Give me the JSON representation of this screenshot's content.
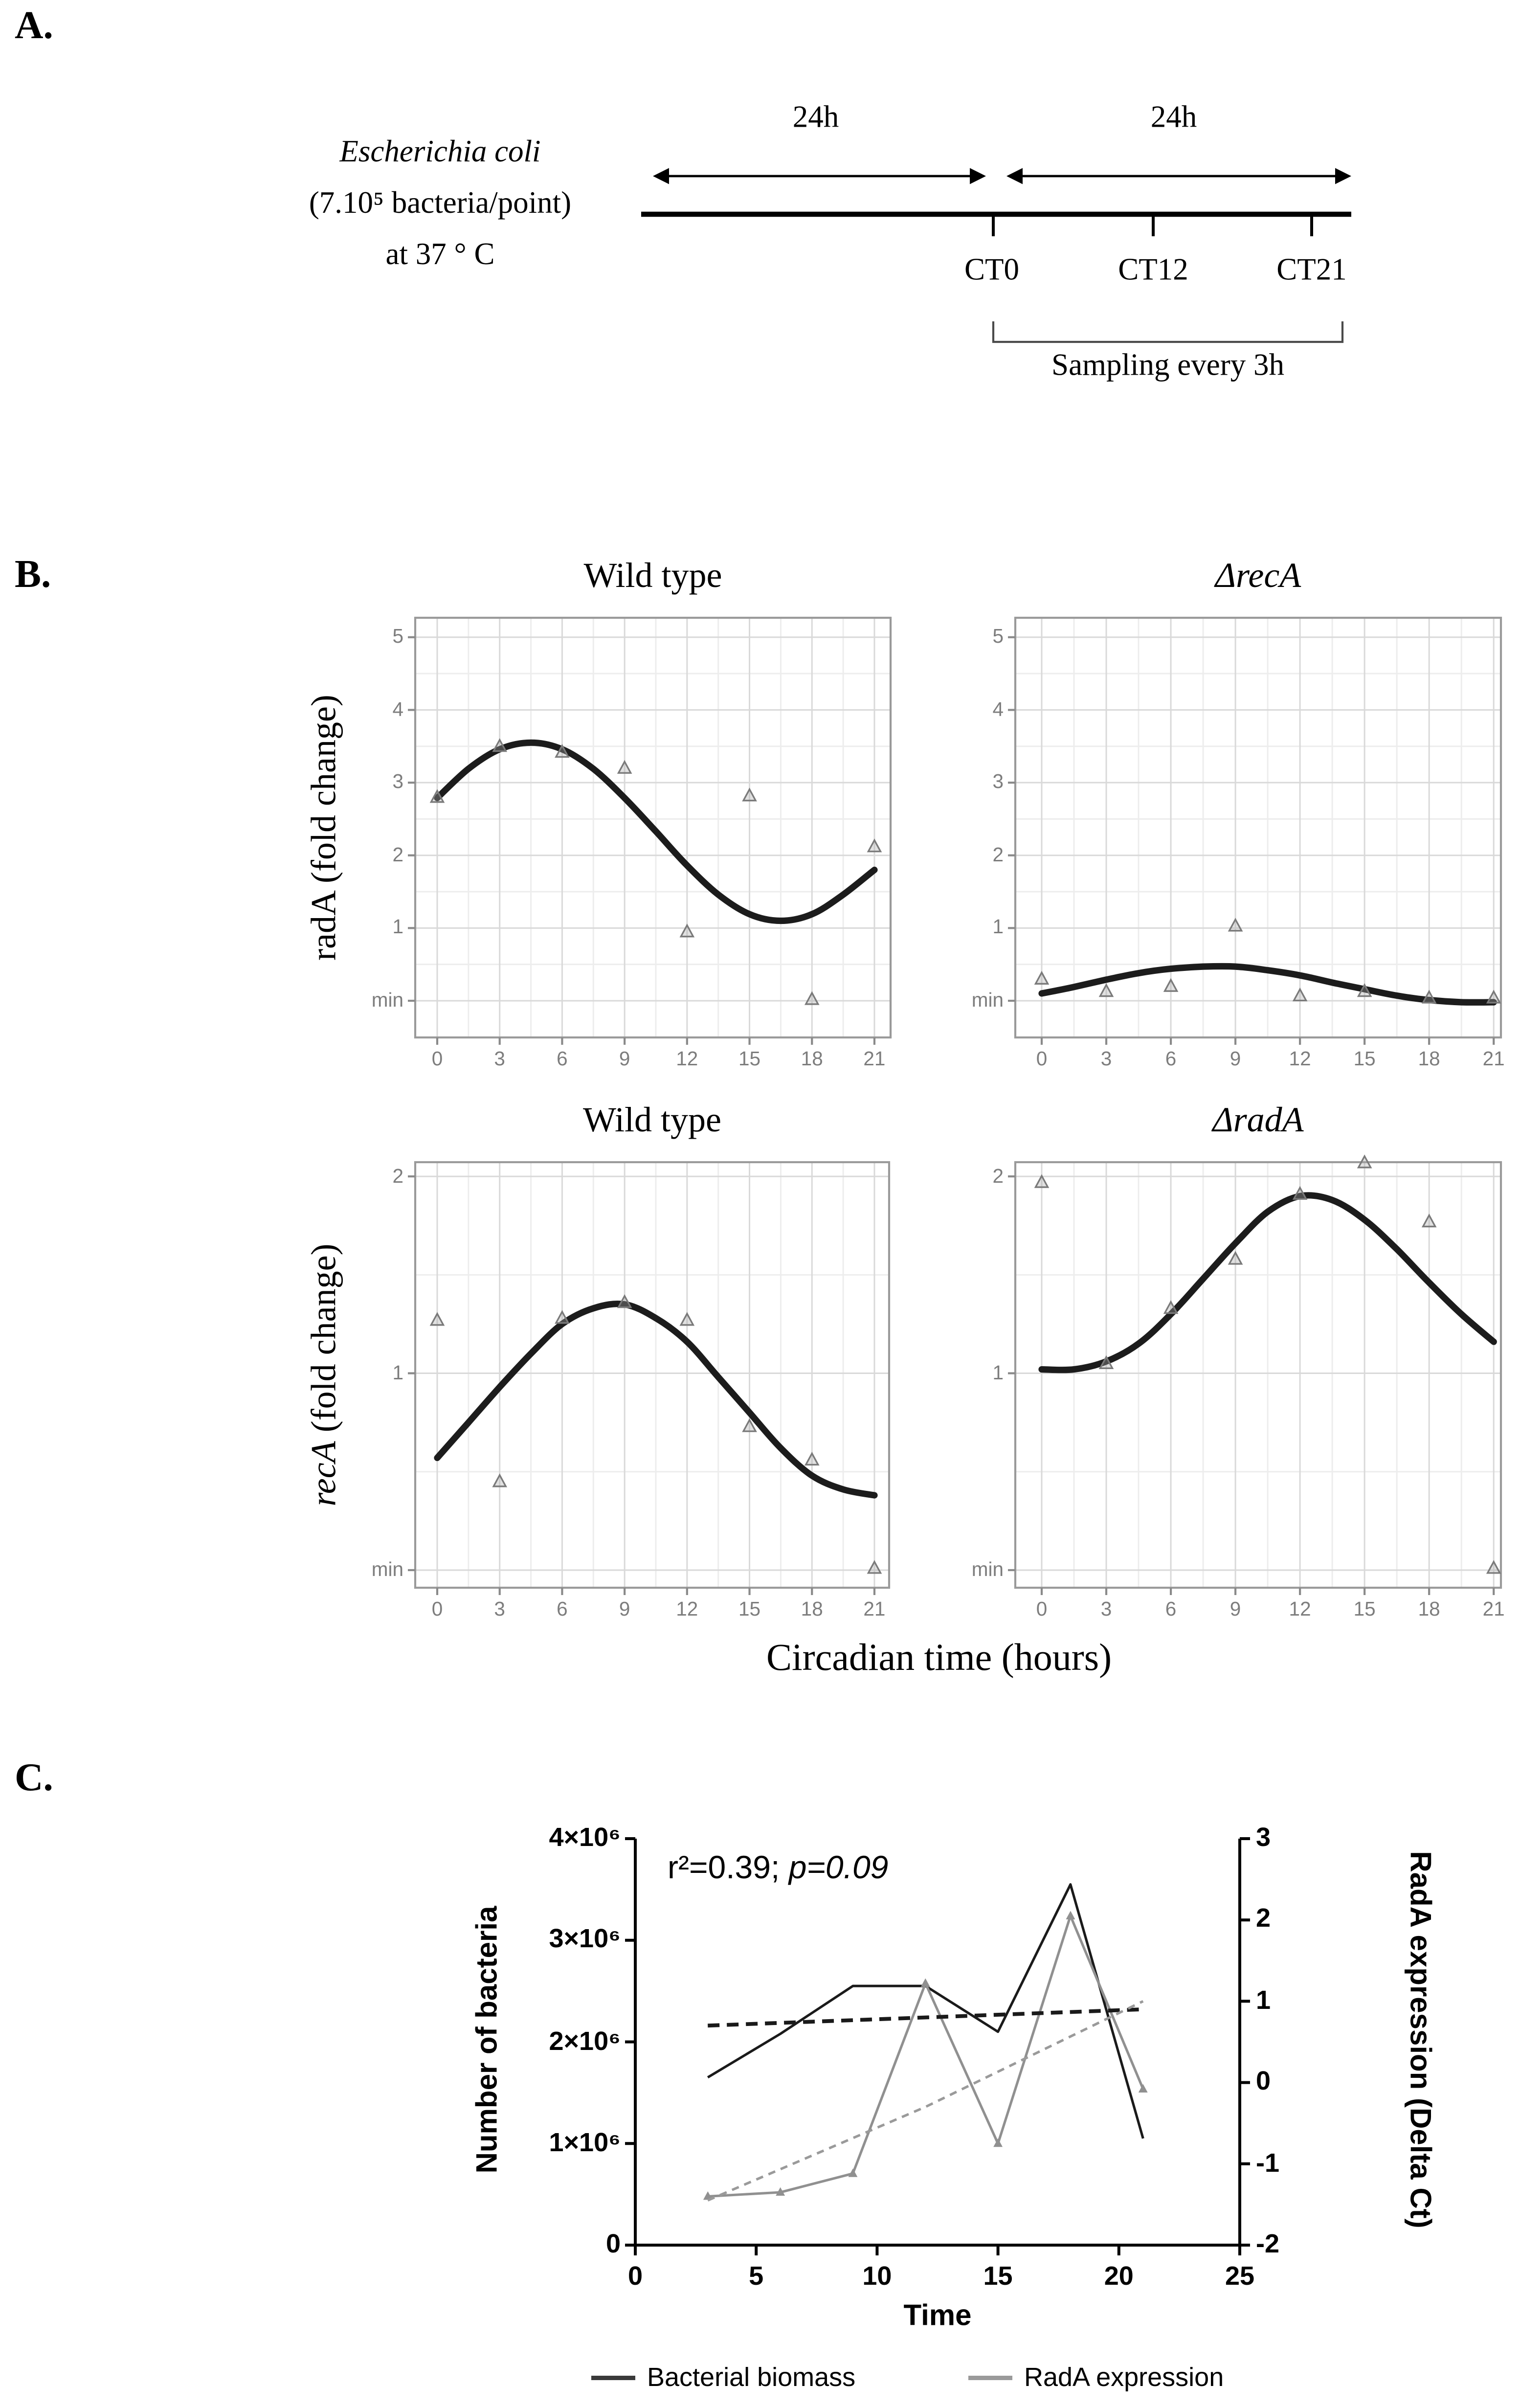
{
  "figure": {
    "panel_a": {
      "label": "A.",
      "organism": "Escherichia coli",
      "inoculum": "(7.10⁵ bacteria/point)",
      "temperature": "at 37 ° C",
      "interval_labels": [
        "24h",
        "24h"
      ],
      "ct_labels": [
        "CT0",
        "CT12",
        "CT21"
      ],
      "sampling_note": "Sampling every 3h"
    },
    "panel_b": {
      "label": "B.",
      "xlabel": "Circadian time (hours)",
      "ylabel_top_gene": "radA",
      "ylabel_top_rest": " (fold change)",
      "ylabel_bottom_gene": "recA",
      "ylabel_bottom_rest": " (fold change)"
    },
    "panel_c": {
      "label": "C.",
      "annotation_r2": "r²=0.39;",
      "annotation_p": "p=0.09",
      "legend": [
        {
          "label": "Bacterial biomass",
          "color": "#3a3a3a"
        },
        {
          "label": "RadA expression",
          "color": "#9a9a9a"
        }
      ]
    },
    "colors": {
      "curve": "#1c1c1c",
      "point_stroke": "#7a7a7a",
      "point_fill": "#c9c9c9",
      "grid_major": "#d9d9d9",
      "grid_minor": "#ededed",
      "plot_border": "#9a9a9a",
      "tick": "#8a8a8a",
      "axis_black": "#000000"
    }
  },
  "chart_data": [
    {
      "id": "b_wildtype_radA",
      "type": "scatter",
      "title": "Wild type",
      "title_italic": false,
      "ylabel": "radA (fold change)",
      "x": [
        0,
        3,
        6,
        9,
        12,
        15,
        18,
        21
      ],
      "points": [
        2.8,
        3.5,
        3.42,
        3.2,
        0.95,
        2.82,
        0.02,
        2.12
      ],
      "fit_x": [
        0,
        1.5,
        3,
        4.5,
        6,
        7.5,
        9,
        10.5,
        12,
        13.5,
        15,
        16.5,
        18,
        19.5,
        21
      ],
      "fit_y": [
        2.79,
        3.19,
        3.46,
        3.55,
        3.46,
        3.19,
        2.79,
        2.33,
        1.86,
        1.46,
        1.19,
        1.1,
        1.19,
        1.46,
        1.8
      ],
      "ylim": [
        -0.5,
        5.27
      ],
      "y_ticks": [
        0,
        1,
        2,
        3,
        4,
        5
      ],
      "y_tick_labels": [
        "min",
        "1",
        "2",
        "3",
        "4",
        "5"
      ],
      "grid": true
    },
    {
      "id": "b_delta_recA_radA",
      "type": "scatter",
      "title": "ΔrecA",
      "title_italic": true,
      "ylabel": "radA (fold change)",
      "x": [
        0,
        3,
        6,
        9,
        12,
        15,
        18,
        21
      ],
      "points": [
        0.3,
        0.13,
        0.2,
        1.03,
        0.07,
        0.13,
        0.04,
        0.04
      ],
      "fit_x": [
        0,
        1.5,
        3,
        4.5,
        6,
        7.5,
        9,
        10.5,
        12,
        13.5,
        15,
        16.5,
        18,
        19.5,
        21
      ],
      "fit_y": [
        0.1,
        0.19,
        0.29,
        0.38,
        0.44,
        0.47,
        0.47,
        0.42,
        0.35,
        0.25,
        0.16,
        0.07,
        0.01,
        -0.02,
        -0.02
      ],
      "ylim": [
        -0.5,
        5.27
      ],
      "y_ticks": [
        0,
        1,
        2,
        3,
        4,
        5
      ],
      "y_tick_labels": [
        "min",
        "1",
        "2",
        "3",
        "4",
        "5"
      ],
      "grid": true
    },
    {
      "id": "b_wildtype_recA",
      "type": "scatter",
      "title": "Wild type",
      "title_italic": false,
      "ylabel": "recA (fold change)",
      "x": [
        0,
        3,
        6,
        9,
        12,
        15,
        18,
        21
      ],
      "points": [
        1.27,
        0.45,
        1.28,
        1.36,
        1.27,
        0.73,
        0.56,
        0.01
      ],
      "fit_x": [
        0,
        1.5,
        3,
        4.5,
        6,
        7.5,
        9,
        10.5,
        12,
        13.5,
        15,
        16.5,
        18,
        19.5,
        21
      ],
      "fit_y": [
        0.57,
        0.75,
        0.93,
        1.1,
        1.25,
        1.33,
        1.35,
        1.28,
        1.16,
        0.98,
        0.8,
        0.62,
        0.48,
        0.41,
        0.38
      ],
      "ylim": [
        -0.09,
        2.07
      ],
      "y_ticks": [
        0,
        1,
        2
      ],
      "y_tick_labels": [
        "min",
        "1",
        "2"
      ],
      "grid": true
    },
    {
      "id": "b_delta_radA_recA",
      "type": "scatter",
      "title": "ΔradA",
      "title_italic": true,
      "ylabel": "recA (fold change)",
      "x": [
        0,
        3,
        6,
        9,
        12,
        15,
        18,
        21
      ],
      "points": [
        1.97,
        1.05,
        1.33,
        1.58,
        1.91,
        2.07,
        1.77,
        0.01
      ],
      "fit_x": [
        0,
        1.5,
        3,
        4.5,
        6,
        7.5,
        9,
        10.5,
        12,
        13.5,
        15,
        16.5,
        18,
        19.5,
        21
      ],
      "fit_y": [
        1.02,
        1.02,
        1.06,
        1.15,
        1.3,
        1.48,
        1.66,
        1.82,
        1.9,
        1.88,
        1.78,
        1.63,
        1.46,
        1.3,
        1.16
      ],
      "ylim": [
        -0.09,
        2.07
      ],
      "y_ticks": [
        0,
        1,
        2
      ],
      "y_tick_labels": [
        "min",
        "1",
        "2"
      ],
      "grid": true
    },
    {
      "id": "c_biomass_vs_radA",
      "type": "line",
      "annotation": "r²=0.39; p=0.09",
      "xlabel": "Time",
      "ylabel_left": "Number of bacteria",
      "ylabel_right": "RadA expression (Delta Ct)",
      "xlim": [
        0,
        25
      ],
      "x_ticks": [
        "0",
        "5",
        "10",
        "15",
        "20",
        "25"
      ],
      "ylim_left": [
        0,
        4000000
      ],
      "y_ticks_left": [
        "0",
        "1×10⁶",
        "2×10⁶",
        "3×10⁶",
        "4×10⁶"
      ],
      "ylim_right": [
        -2,
        3
      ],
      "y_ticks_right": [
        "-2",
        "-1",
        "0",
        "1",
        "2",
        "3"
      ],
      "grid": false,
      "legend_position": "bottom",
      "series": [
        {
          "name": "Bacterial biomass",
          "axis": "left",
          "style": "solid",
          "color": "#1a1a1a",
          "x": [
            3,
            6,
            9,
            12,
            15,
            18,
            21
          ],
          "y": [
            1650000,
            2080000,
            2550000,
            2550000,
            2100000,
            3550000,
            1050000
          ]
        },
        {
          "name": "RadA expression",
          "axis": "right",
          "style": "solid",
          "color": "#909090",
          "x": [
            3,
            6,
            9,
            12,
            15,
            18,
            21
          ],
          "y": [
            -1.4,
            -1.35,
            -1.12,
            1.22,
            -0.75,
            2.05,
            -0.08
          ]
        },
        {
          "name": "Bacterial biomass trend",
          "axis": "left",
          "style": "dashed",
          "color": "#1a1a1a",
          "x": [
            3,
            21
          ],
          "y": [
            2160000,
            2320000
          ]
        },
        {
          "name": "RadA expression trend",
          "axis": "right",
          "style": "dashed",
          "color": "#9a9a9a",
          "x": [
            3,
            12,
            21
          ],
          "y": [
            -1.45,
            -0.3,
            1.0
          ]
        }
      ]
    }
  ]
}
